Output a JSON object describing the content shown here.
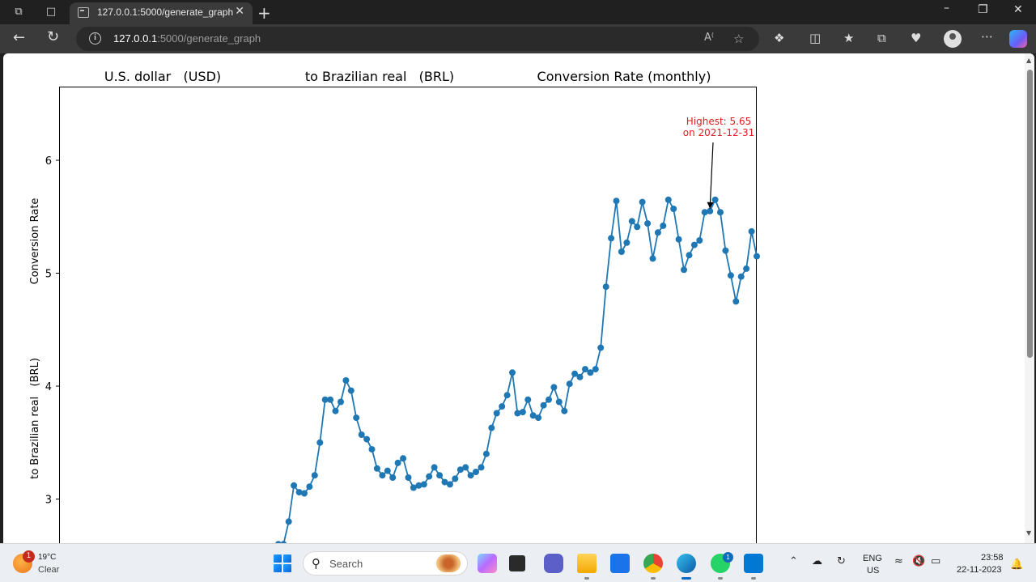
{
  "browser": {
    "tab_title": "127.0.0.1:5000/generate_graph",
    "url_host": "127.0.0.1",
    "url_rest": ":5000/generate_graph"
  },
  "chart_data": {
    "type": "line",
    "title_parts": [
      "U.S. dollar   (USD)",
      "to Brazilian real   (BRL)",
      "Conversion Rate (monthly)"
    ],
    "ylabel_parts": [
      "to Brazilian real   (BRL)",
      "Conversion Rate"
    ],
    "yticks": [
      "3",
      "4",
      "5",
      "6"
    ],
    "ylim": [
      2.62,
      6.65
    ],
    "x_index_range": [
      0,
      134
    ],
    "series_color": "#1f77b4",
    "annotation": {
      "line1": "Highest: 5.65",
      "line2": "on 2021-12-31",
      "color": "#e41a1c",
      "point_index": 125
    },
    "values": [
      2.6,
      2.6,
      2.8,
      3.12,
      3.06,
      3.05,
      3.11,
      3.21,
      3.5,
      3.88,
      3.88,
      3.78,
      3.86,
      4.05,
      3.96,
      3.72,
      3.57,
      3.53,
      3.44,
      3.27,
      3.21,
      3.25,
      3.19,
      3.32,
      3.36,
      3.19,
      3.1,
      3.12,
      3.13,
      3.2,
      3.28,
      3.21,
      3.15,
      3.13,
      3.18,
      3.26,
      3.28,
      3.21,
      3.24,
      3.28,
      3.4,
      3.63,
      3.76,
      3.82,
      3.92,
      4.12,
      3.76,
      3.77,
      3.88,
      3.74,
      3.72,
      3.83,
      3.88,
      3.99,
      3.86,
      3.78,
      4.02,
      4.11,
      4.08,
      4.15,
      4.12,
      4.15,
      4.34,
      4.88,
      5.31,
      5.64,
      5.19,
      5.27,
      5.46,
      5.41,
      5.63,
      5.44,
      5.13,
      5.36,
      5.42,
      5.65,
      5.57,
      5.3,
      5.03,
      5.16,
      5.25,
      5.29,
      5.54,
      5.55,
      5.65,
      5.54,
      5.2,
      4.98,
      4.75,
      4.97,
      5.04,
      5.37,
      5.15
    ]
  },
  "taskbar": {
    "weather_temp": "19°C",
    "weather_cond": "Clear",
    "weather_badge": "1",
    "search_label": "Search",
    "whatsapp_badge": "1",
    "lang_line1": "ENG",
    "lang_line2": "US",
    "time": "23:58",
    "date": "22-11-2023"
  }
}
